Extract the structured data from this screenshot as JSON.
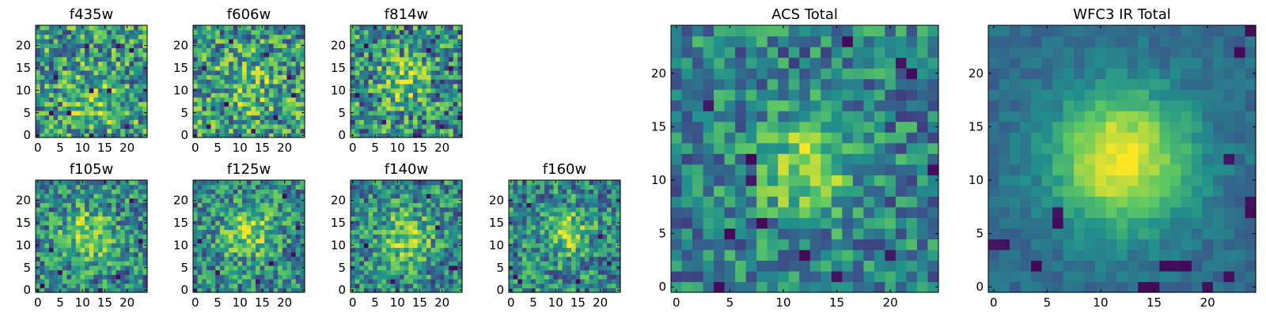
{
  "figure": {
    "colormap_name": "viridis",
    "colormap": [
      "#440154",
      "#3b528b",
      "#21918c",
      "#5ec962",
      "#fde725"
    ],
    "background": "#ffffff"
  },
  "chart_data": [
    {
      "type": "heatmap",
      "title": "f435w",
      "grid": false,
      "xlim": [
        -0.5,
        24.5
      ],
      "ylim": [
        -0.5,
        24.5
      ],
      "xticks": [
        0,
        5,
        10,
        15,
        20
      ],
      "yticks": [
        0,
        5,
        10,
        15,
        20
      ],
      "xtick_labels": [
        "0",
        "5",
        "10",
        "15",
        "20"
      ],
      "ytick_labels": [
        "0",
        "5",
        "10",
        "15",
        "20"
      ],
      "value_range": [
        0,
        1
      ],
      "source_center": [
        13,
        7
      ],
      "source_peak": 0.15,
      "source_sigma": 4.0,
      "noise_level": 0.36,
      "noise_seed": 101,
      "dark_pixels": [
        [
          11,
          20
        ],
        [
          18,
          20
        ],
        [
          21,
          19
        ],
        [
          4,
          13
        ],
        [
          12,
          10
        ],
        [
          7,
          5
        ],
        [
          3,
          5
        ],
        [
          16,
          10
        ],
        [
          20,
          2
        ],
        [
          12,
          0
        ]
      ]
    },
    {
      "type": "heatmap",
      "title": "f606w",
      "grid": false,
      "xlim": [
        -0.5,
        24.5
      ],
      "ylim": [
        -0.5,
        24.5
      ],
      "xticks": [
        0,
        5,
        10,
        15,
        20
      ],
      "yticks": [
        0,
        5,
        10,
        15,
        20
      ],
      "xtick_labels": [
        "0",
        "5",
        "10",
        "15",
        "20"
      ],
      "ytick_labels": [
        "0",
        "5",
        "10",
        "15",
        "20"
      ],
      "value_range": [
        0,
        1
      ],
      "source_center": [
        12,
        11
      ],
      "source_peak": 0.15,
      "source_sigma": 4.0,
      "noise_level": 0.36,
      "noise_seed": 202,
      "dark_pixels": [
        [
          8,
          21
        ],
        [
          16,
          18
        ],
        [
          2,
          15
        ],
        [
          21,
          13
        ],
        [
          7,
          7
        ],
        [
          18,
          4
        ],
        [
          3,
          2
        ],
        [
          13,
          1
        ],
        [
          22,
          9
        ]
      ]
    },
    {
      "type": "heatmap",
      "title": "f814w",
      "grid": false,
      "xlim": [
        -0.5,
        24.5
      ],
      "ylim": [
        -0.5,
        24.5
      ],
      "xticks": [
        0,
        5,
        10,
        15,
        20
      ],
      "yticks": [
        0,
        5,
        10,
        15,
        20
      ],
      "xtick_labels": [
        "0",
        "5",
        "10",
        "15",
        "20"
      ],
      "ytick_labels": [
        "0",
        "5",
        "10",
        "15",
        "20"
      ],
      "value_range": [
        0,
        1
      ],
      "source_center": [
        11,
        12
      ],
      "source_peak": 0.25,
      "source_sigma": 3.5,
      "noise_level": 0.36,
      "noise_seed": 303,
      "dark_pixels": [
        [
          3,
          20
        ],
        [
          17,
          19
        ],
        [
          22,
          15
        ],
        [
          1,
          9
        ],
        [
          7,
          3
        ],
        [
          20,
          2
        ],
        [
          14,
          0
        ],
        [
          24,
          4
        ]
      ]
    },
    {
      "type": "heatmap",
      "title": "f105w",
      "grid": false,
      "xlim": [
        -0.5,
        24.5
      ],
      "ylim": [
        -0.5,
        24.5
      ],
      "xticks": [
        0,
        5,
        10,
        15,
        20
      ],
      "yticks": [
        0,
        5,
        10,
        15,
        20
      ],
      "xtick_labels": [
        "0",
        "5",
        "10",
        "15",
        "20"
      ],
      "ytick_labels": [
        "0",
        "5",
        "10",
        "15",
        "20"
      ],
      "value_range": [
        0,
        1
      ],
      "source_center": [
        11,
        12
      ],
      "source_peak": 0.3,
      "source_sigma": 4.0,
      "noise_level": 0.3,
      "noise_seed": 404,
      "dark_pixels": [
        [
          3,
          9
        ],
        [
          23,
          11
        ],
        [
          18,
          3
        ],
        [
          14,
          0
        ],
        [
          1,
          1
        ],
        [
          21,
          20
        ],
        [
          5,
          4
        ]
      ]
    },
    {
      "type": "heatmap",
      "title": "f125w",
      "grid": false,
      "xlim": [
        -0.5,
        24.5
      ],
      "ylim": [
        -0.5,
        24.5
      ],
      "xticks": [
        0,
        5,
        10,
        15,
        20
      ],
      "yticks": [
        0,
        5,
        10,
        15,
        20
      ],
      "xtick_labels": [
        "0",
        "5",
        "10",
        "15",
        "20"
      ],
      "ytick_labels": [
        "0",
        "5",
        "10",
        "15",
        "20"
      ],
      "value_range": [
        0,
        1
      ],
      "source_center": [
        12,
        13
      ],
      "source_peak": 0.3,
      "source_sigma": 4.0,
      "noise_level": 0.3,
      "noise_seed": 505,
      "dark_pixels": [
        [
          20,
          21
        ],
        [
          23,
          14
        ],
        [
          5,
          4
        ],
        [
          14,
          2
        ],
        [
          22,
          8
        ],
        [
          1,
          11
        ],
        [
          17,
          6
        ]
      ]
    },
    {
      "type": "heatmap",
      "title": "f140w",
      "grid": false,
      "xlim": [
        -0.5,
        24.5
      ],
      "ylim": [
        -0.5,
        24.5
      ],
      "xticks": [
        0,
        5,
        10,
        15,
        20
      ],
      "yticks": [
        0,
        5,
        10,
        15,
        20
      ],
      "xtick_labels": [
        "0",
        "5",
        "10",
        "15",
        "20"
      ],
      "ytick_labels": [
        "0",
        "5",
        "10",
        "15",
        "20"
      ],
      "value_range": [
        0,
        1
      ],
      "source_center": [
        12,
        12
      ],
      "source_peak": 0.3,
      "source_sigma": 4.0,
      "noise_level": 0.3,
      "noise_seed": 606,
      "dark_pixels": [
        [
          22,
          5
        ],
        [
          23,
          5
        ],
        [
          3,
          10
        ],
        [
          17,
          21
        ],
        [
          9,
          2
        ],
        [
          19,
          14
        ]
      ]
    },
    {
      "type": "heatmap",
      "title": "f160w",
      "grid": false,
      "xlim": [
        -0.5,
        24.5
      ],
      "ylim": [
        -0.5,
        24.5
      ],
      "xticks": [
        0,
        5,
        10,
        15,
        20
      ],
      "yticks": [
        0,
        5,
        10,
        15,
        20
      ],
      "xtick_labels": [
        "0",
        "5",
        "10",
        "15",
        "20"
      ],
      "ytick_labels": [
        "0",
        "5",
        "10",
        "15",
        "20"
      ],
      "value_range": [
        0,
        1
      ],
      "source_center": [
        12,
        13
      ],
      "source_peak": 0.3,
      "source_sigma": 3.5,
      "noise_level": 0.3,
      "noise_seed": 707,
      "dark_pixels": [
        [
          1,
          3
        ],
        [
          2,
          2
        ],
        [
          22,
          6
        ],
        [
          15,
          2
        ],
        [
          20,
          12
        ],
        [
          4,
          19
        ]
      ]
    },
    {
      "type": "heatmap",
      "title": "ACS Total",
      "grid": false,
      "xlim": [
        -0.5,
        24.5
      ],
      "ylim": [
        -0.5,
        24.5
      ],
      "xticks": [
        0,
        5,
        10,
        15,
        20
      ],
      "yticks": [
        0,
        5,
        10,
        15,
        20
      ],
      "xtick_labels": [
        "0",
        "5",
        "10",
        "15",
        "20"
      ],
      "ytick_labels": [
        "0",
        "5",
        "10",
        "15",
        "20"
      ],
      "value_range": [
        0,
        1
      ],
      "source_center": [
        12,
        11
      ],
      "source_peak": 0.35,
      "source_sigma": 3.0,
      "noise_level": 0.26,
      "noise_seed": 808,
      "dark_pixels": [
        [
          16,
          23
        ],
        [
          21,
          21
        ],
        [
          7,
          12
        ],
        [
          7,
          10
        ],
        [
          8,
          6
        ],
        [
          5,
          5
        ],
        [
          12,
          3
        ],
        [
          20,
          3
        ],
        [
          15,
          1
        ],
        [
          4,
          0
        ],
        [
          3,
          17
        ],
        [
          22,
          20
        ],
        [
          24,
          11
        ]
      ]
    },
    {
      "type": "heatmap",
      "title": "WFC3 IR Total",
      "grid": false,
      "xlim": [
        -0.5,
        24.5
      ],
      "ylim": [
        -0.5,
        24.5
      ],
      "xticks": [
        0,
        5,
        10,
        15,
        20
      ],
      "yticks": [
        0,
        5,
        10,
        15,
        20
      ],
      "xtick_labels": [
        "0",
        "5",
        "10",
        "15",
        "20"
      ],
      "ytick_labels": [
        "0",
        "5",
        "10",
        "15",
        "20"
      ],
      "value_range": [
        0,
        1
      ],
      "source_center": [
        12,
        12
      ],
      "source_peak": 0.55,
      "source_sigma": 4.5,
      "noise_level": 0.08,
      "noise_seed": 909,
      "dark_pixels": [
        [
          24,
          24
        ],
        [
          6,
          7
        ],
        [
          6,
          6
        ],
        [
          24,
          8
        ],
        [
          24,
          7
        ],
        [
          4,
          2
        ],
        [
          16,
          2
        ],
        [
          17,
          2
        ],
        [
          18,
          2
        ],
        [
          22,
          1
        ],
        [
          14,
          0
        ],
        [
          15,
          0
        ],
        [
          20,
          0
        ],
        [
          0,
          4
        ],
        [
          1,
          4
        ],
        [
          23,
          22
        ],
        [
          22,
          12
        ]
      ]
    }
  ]
}
